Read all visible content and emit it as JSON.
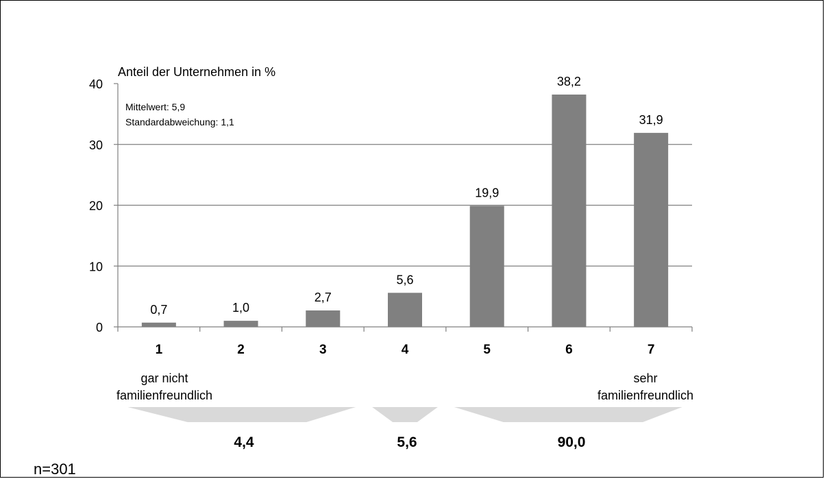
{
  "chart_data": {
    "type": "bar",
    "ylabel": "Anteil der Unternehmen in %",
    "categories": [
      "1",
      "2",
      "3",
      "4",
      "5",
      "6",
      "7"
    ],
    "values": [
      0.7,
      1.0,
      2.7,
      5.6,
      19.9,
      38.2,
      31.9
    ],
    "value_labels": [
      "0,7",
      "1,0",
      "2,7",
      "5,6",
      "19,9",
      "38,2",
      "31,9"
    ],
    "ylim": [
      0,
      40
    ],
    "yticks": [
      0,
      10,
      20,
      30,
      40
    ],
    "grid": true,
    "bar_color": "#808080",
    "annotations": {
      "stats": [
        "Mittelwert: 5,9",
        "Standardabweichung: 1,1"
      ],
      "category_low": [
        "gar nicht",
        "familienfreundlich"
      ],
      "category_high": [
        "sehr",
        "familienfreundlich"
      ]
    },
    "groups": [
      {
        "label": "4,4",
        "categories": [
          "1",
          "2",
          "3"
        ]
      },
      {
        "label": "5,6",
        "categories": [
          "4"
        ]
      },
      {
        "label": "90,0",
        "categories": [
          "5",
          "6",
          "7"
        ]
      }
    ],
    "sample_size": "n=301"
  }
}
